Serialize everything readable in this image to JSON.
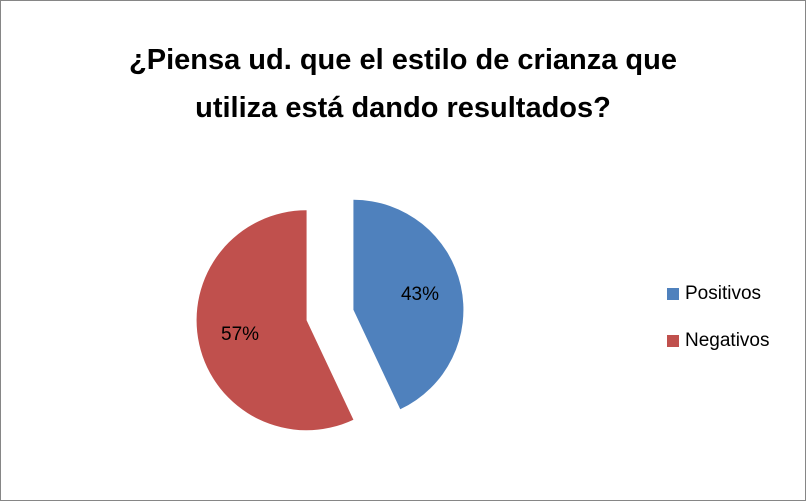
{
  "chart_data": {
    "type": "pie",
    "title": "¿Piensa ud. que el estilo de crianza que utiliza está dando resultados?",
    "categories": [
      "Positivos",
      "Negativos"
    ],
    "values": [
      43,
      57
    ],
    "value_labels": [
      "43%",
      "57%"
    ],
    "colors": [
      "#4f81bd",
      "#c0504d"
    ],
    "legend": "right"
  }
}
